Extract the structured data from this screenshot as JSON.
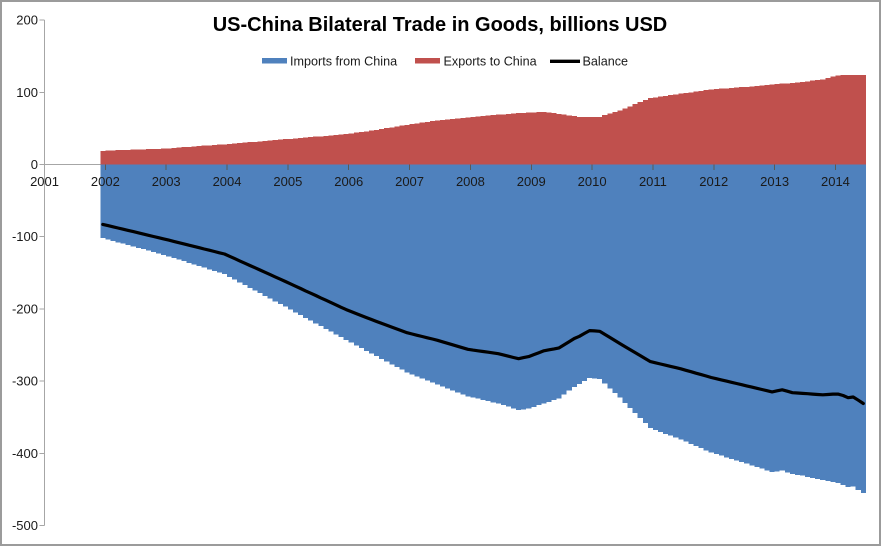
{
  "window": {
    "background": "#ffffff",
    "border_color": "#9b9b9b"
  },
  "style_colors": {
    "axis_line": "#a6a6a6",
    "zero_gridline": "#a6a6a6",
    "category_tick": "#595959",
    "text": "#1a1a1a"
  },
  "chart_data": {
    "type": "area",
    "title": "US-China Bilateral Trade in Goods, billions USD",
    "legend": [
      "Imports from China",
      "Exports to China",
      "Balance"
    ],
    "legend_position": "top-center",
    "grid": "zero line only",
    "ylim": [
      -500,
      200
    ],
    "y_ticks": [
      200,
      100,
      0,
      -100,
      -200,
      -300,
      -400,
      -500
    ],
    "x_tick_labels": [
      "2001",
      "2002",
      "2003",
      "2004",
      "2005",
      "2006",
      "2007",
      "2008",
      "2009",
      "2010",
      "2011",
      "2012",
      "2013",
      "2014"
    ],
    "x_unit": "months since Dec 2001 (monthly series, Dec 2001 - Jun 2014, trailing 12-month sums)",
    "months_count": 151,
    "series": [
      {
        "name": "Imports from China",
        "color": "#4F81BD",
        "plotted_as": "negative area (below zero)",
        "points": [
          [
            0,
            102
          ],
          [
            12,
            125
          ],
          [
            24,
            152
          ],
          [
            36,
            197
          ],
          [
            48,
            243
          ],
          [
            60,
            288
          ],
          [
            72,
            321
          ],
          [
            78,
            331
          ],
          [
            82,
            340
          ],
          [
            84,
            338
          ],
          [
            87,
            331
          ],
          [
            90,
            324
          ],
          [
            93,
            308
          ],
          [
            96,
            296
          ],
          [
            98,
            297
          ],
          [
            102,
            323
          ],
          [
            108,
            365
          ],
          [
            114,
            381
          ],
          [
            120,
            399
          ],
          [
            126,
            412
          ],
          [
            132,
            426
          ],
          [
            134,
            424
          ],
          [
            136,
            429
          ],
          [
            138,
            431
          ],
          [
            144,
            440
          ],
          [
            145,
            441
          ],
          [
            147,
            447
          ],
          [
            148,
            446
          ],
          [
            150,
            455
          ]
        ]
      },
      {
        "name": "Exports to China",
        "color": "#C0504D",
        "plotted_as": "positive area (above zero)",
        "points": [
          [
            0,
            19
          ],
          [
            12,
            22
          ],
          [
            24,
            28
          ],
          [
            36,
            35
          ],
          [
            48,
            42
          ],
          [
            54,
            48
          ],
          [
            60,
            55
          ],
          [
            66,
            61
          ],
          [
            72,
            65
          ],
          [
            78,
            69
          ],
          [
            84,
            72
          ],
          [
            87,
            73
          ],
          [
            90,
            70
          ],
          [
            94,
            66
          ],
          [
            98,
            66
          ],
          [
            102,
            75
          ],
          [
            108,
            92
          ],
          [
            114,
            98
          ],
          [
            120,
            104
          ],
          [
            126,
            107
          ],
          [
            132,
            111
          ],
          [
            138,
            114
          ],
          [
            142,
            118
          ],
          [
            144,
            122
          ],
          [
            146,
            124
          ],
          [
            150,
            124
          ]
        ]
      },
      {
        "name": "Balance",
        "color": "#000000",
        "plotted_as": "line",
        "derivation": "exports minus imports",
        "key_values": [
          [
            0,
            -83
          ],
          [
            24,
            -124
          ],
          [
            48,
            -201
          ],
          [
            72,
            -256
          ],
          [
            84,
            -266
          ],
          [
            96,
            -230
          ],
          [
            108,
            -273
          ],
          [
            120,
            -295
          ],
          [
            132,
            -315
          ],
          [
            144,
            -318
          ],
          [
            150,
            -331
          ]
        ]
      }
    ]
  }
}
